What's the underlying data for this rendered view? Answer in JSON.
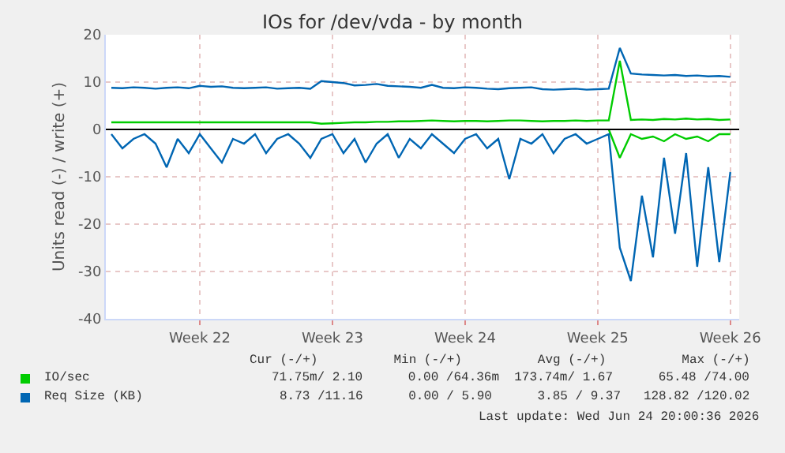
{
  "chart_data": {
    "type": "line",
    "title": "IOs for /dev/vda - by month",
    "ylabel": "Units read (-) / write (+)",
    "categories": [
      null,
      null,
      null,
      null,
      null,
      null,
      null,
      null,
      "Week 22",
      null,
      null,
      null,
      null,
      null,
      null,
      null,
      null,
      null,
      null,
      null,
      "Week 23",
      null,
      null,
      null,
      null,
      null,
      null,
      null,
      null,
      null,
      null,
      null,
      "Week 24",
      null,
      null,
      null,
      null,
      null,
      null,
      null,
      null,
      null,
      null,
      null,
      "Week 25",
      null,
      null,
      null,
      null,
      null,
      null,
      null,
      null,
      null,
      null,
      null,
      "Week 26"
    ],
    "series": [
      {
        "name": "IO/sec",
        "color": "#00cc00",
        "values": [
          1.5,
          1.5,
          1.5,
          1.5,
          1.5,
          1.5,
          1.5,
          1.5,
          1.5,
          1.5,
          1.5,
          1.5,
          1.5,
          1.5,
          1.5,
          1.5,
          1.5,
          1.5,
          1.5,
          1.2,
          1.3,
          1.4,
          1.5,
          1.5,
          1.6,
          1.6,
          1.7,
          1.7,
          1.8,
          1.9,
          1.8,
          1.7,
          1.8,
          1.8,
          1.7,
          1.8,
          1.9,
          1.9,
          1.8,
          1.7,
          1.8,
          1.8,
          1.9,
          1.8,
          1.9,
          1.9,
          14.5,
          2.0,
          2.1,
          2.0,
          2.2,
          2.1,
          2.3,
          2.1,
          2.2,
          2.0,
          2.1
        ]
      },
      {
        "color": "#00cc00",
        "values": [
          null,
          null,
          null,
          null,
          null,
          null,
          null,
          null,
          null,
          null,
          null,
          null,
          null,
          null,
          null,
          null,
          null,
          null,
          null,
          null,
          null,
          null,
          null,
          null,
          null,
          null,
          null,
          null,
          null,
          null,
          null,
          null,
          null,
          null,
          null,
          null,
          null,
          null,
          null,
          null,
          null,
          null,
          null,
          null,
          null,
          0,
          -6,
          -1,
          -2,
          -1.5,
          -2.5,
          -1,
          -2,
          -1.5,
          -2.5,
          -1,
          -1
        ]
      },
      {
        "name": "Req Size (KB)",
        "color": "#0066b3",
        "values": [
          8.8,
          8.7,
          8.9,
          8.8,
          8.6,
          8.8,
          8.9,
          8.7,
          9.2,
          9.0,
          9.1,
          8.8,
          8.7,
          8.8,
          8.9,
          8.6,
          8.7,
          8.8,
          8.6,
          10.2,
          10.0,
          9.8,
          9.3,
          9.4,
          9.6,
          9.2,
          9.1,
          9.0,
          8.8,
          9.4,
          8.8,
          8.7,
          8.9,
          8.8,
          8.6,
          8.5,
          8.7,
          8.8,
          8.9,
          8.5,
          8.4,
          8.5,
          8.6,
          8.4,
          8.5,
          8.6,
          17.2,
          11.8,
          11.6,
          11.5,
          11.4,
          11.5,
          11.3,
          11.4,
          11.2,
          11.3,
          11.1
        ]
      },
      {
        "color": "#0066b3",
        "values": [
          -1,
          -4,
          -2,
          -1,
          -3,
          -8,
          -2,
          -5,
          -1,
          -4,
          -7,
          -2,
          -3,
          -1,
          -5,
          -2,
          -1,
          -3,
          -6,
          -2,
          -1,
          -5,
          -2,
          -7,
          -3,
          -1,
          -6,
          -2,
          -4,
          -1,
          -3,
          -5,
          -2,
          -1,
          -4,
          -2,
          -10.5,
          -2,
          -3,
          -1,
          -5,
          -2,
          -1,
          -3,
          -2,
          -1,
          -25,
          -32,
          -14,
          -27,
          -6,
          -22,
          -5,
          -29,
          -8,
          -28,
          -9
        ]
      }
    ],
    "ylim": [
      -40,
      20
    ],
    "yticks": [
      -40,
      -30,
      -20,
      -10,
      0,
      10,
      20
    ],
    "ref_lines": [
      {
        "axis": "y",
        "value": 0,
        "color": "#000000"
      }
    ],
    "grid": true,
    "legend": "bottom",
    "marker": "none",
    "line_style": "solid",
    "annotations": [
      "Cur (-/+)          Min (-/+)          Avg (-/+)          Max (-/+)",
      "71.75m/ 2.10      0.00 /64.36m  173.74m/ 1.67      65.48 /74.00",
      "8.73 /11.16      0.00 / 5.90      3.85 / 9.37   128.82 /120.02",
      "Last update: Wed Jun 24 20:00:36 2026"
    ]
  }
}
